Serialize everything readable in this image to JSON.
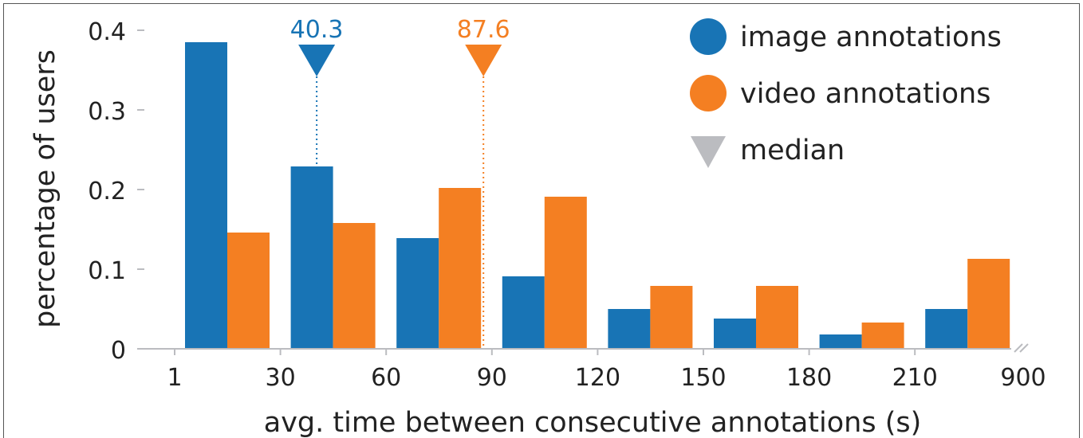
{
  "chart_data": {
    "type": "bar",
    "title": "",
    "xlabel": "avg. time between consecutive annotations (s)",
    "ylabel": "percentage of users",
    "x_tick_labels": [
      "1",
      "30",
      "60",
      "90",
      "120",
      "150",
      "180",
      "210",
      "900"
    ],
    "y_ticks": [
      0,
      0.1,
      0.2,
      0.3,
      0.4
    ],
    "y_tick_labels": [
      "0",
      "0.1",
      "0.2",
      "0.3",
      "0.4"
    ],
    "ylim": [
      0,
      0.42
    ],
    "x_axis_break": true,
    "categories": [
      "1-30",
      "30-60",
      "60-90",
      "90-120",
      "120-150",
      "150-180",
      "180-210",
      "210-900"
    ],
    "series": [
      {
        "name": "image annotations",
        "color": "#1874b5",
        "values": [
          0.385,
          0.229,
          0.139,
          0.091,
          0.05,
          0.038,
          0.018,
          0.05
        ]
      },
      {
        "name": "video annotations",
        "color": "#f47f22",
        "values": [
          0.146,
          0.158,
          0.202,
          0.191,
          0.079,
          0.079,
          0.033,
          0.113
        ]
      }
    ],
    "medians": [
      {
        "series": "image annotations",
        "label": "40.3",
        "value": 40.3,
        "color": "#1874b5"
      },
      {
        "series": "video annotations",
        "label": "87.6",
        "value": 87.6,
        "color": "#f47f22"
      }
    ],
    "legend": {
      "position": "top-right",
      "entries": [
        {
          "label": "image annotations",
          "marker": "circle",
          "color": "#1874b5"
        },
        {
          "label": "video annotations",
          "marker": "circle",
          "color": "#f47f22"
        },
        {
          "label": "median",
          "marker": "triangle-down",
          "color": "#bbbcc0"
        }
      ]
    },
    "grid": false
  }
}
